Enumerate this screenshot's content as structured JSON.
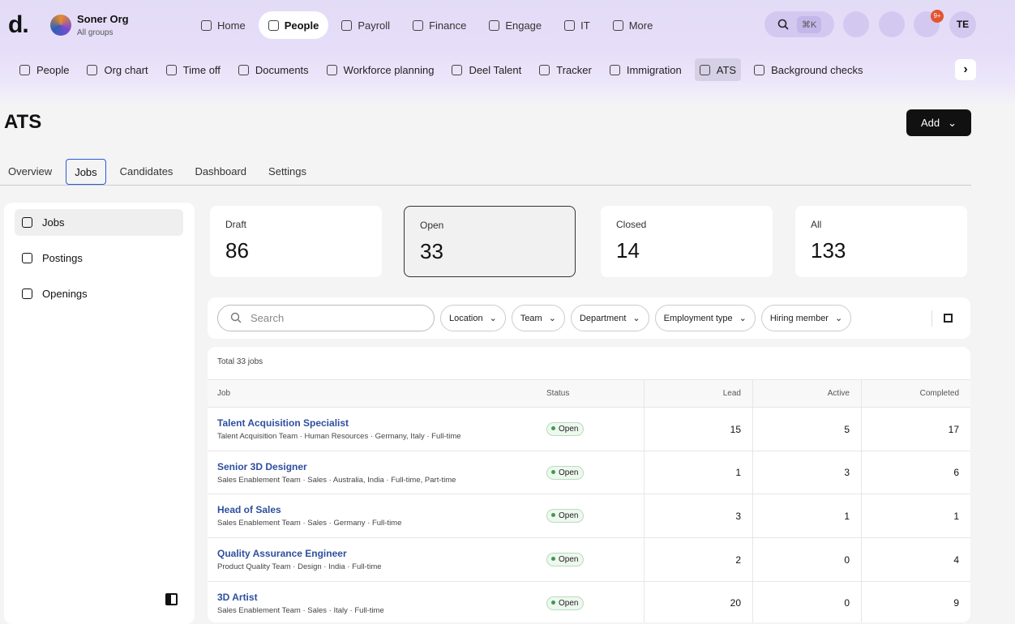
{
  "topbar": {
    "logo": "d.",
    "org_name": "Soner Org",
    "org_sub": "All groups",
    "nav": [
      "Home",
      "People",
      "Payroll",
      "Finance",
      "Engage",
      "IT",
      "More"
    ],
    "search_shortcut": "⌘K",
    "notification_badge": "9+",
    "avatar": "TE"
  },
  "subnav": [
    "People",
    "Org chart",
    "Time off",
    "Documents",
    "Workforce planning",
    "Deel Talent",
    "Tracker",
    "Immigration",
    "ATS",
    "Background checks"
  ],
  "page": {
    "title": "ATS",
    "add_button": "Add",
    "tabs": [
      "Overview",
      "Jobs",
      "Candidates",
      "Dashboard",
      "Settings"
    ]
  },
  "sidebar": [
    "Jobs",
    "Postings",
    "Openings"
  ],
  "stats": [
    {
      "label": "Draft",
      "value": 86
    },
    {
      "label": "Open",
      "value": 33
    },
    {
      "label": "Closed",
      "value": 14
    },
    {
      "label": "All",
      "value": 133
    }
  ],
  "filters": {
    "search_placeholder": "Search",
    "buttons": [
      "Location",
      "Team",
      "Department",
      "Employment type",
      "Hiring member"
    ]
  },
  "table": {
    "total": "Total 33 jobs",
    "columns": [
      "Job",
      "Status",
      "Lead",
      "Active",
      "Completed"
    ],
    "rows": [
      {
        "title": "Talent Acquisition Specialist",
        "meta": "Talent Acquisition Team · Human Resources · Germany, Italy · Full-time",
        "status": "Open",
        "lead": 15,
        "active": 5,
        "completed": 17
      },
      {
        "title": "Senior 3D Designer",
        "meta": "Sales Enablement Team · Sales · Australia, India · Full-time, Part-time",
        "status": "Open",
        "lead": 1,
        "active": 3,
        "completed": 6
      },
      {
        "title": "Head of Sales",
        "meta": "Sales Enablement Team · Sales · Germany · Full-time",
        "status": "Open",
        "lead": 3,
        "active": 1,
        "completed": 1
      },
      {
        "title": "Quality Assurance Engineer",
        "meta": "Product Quality Team · Design · India · Full-time",
        "status": "Open",
        "lead": 2,
        "active": 0,
        "completed": 4
      },
      {
        "title": "3D Artist",
        "meta": "Sales Enablement Team · Sales · Italy · Full-time",
        "status": "Open",
        "lead": 20,
        "active": 0,
        "completed": 9
      }
    ]
  }
}
